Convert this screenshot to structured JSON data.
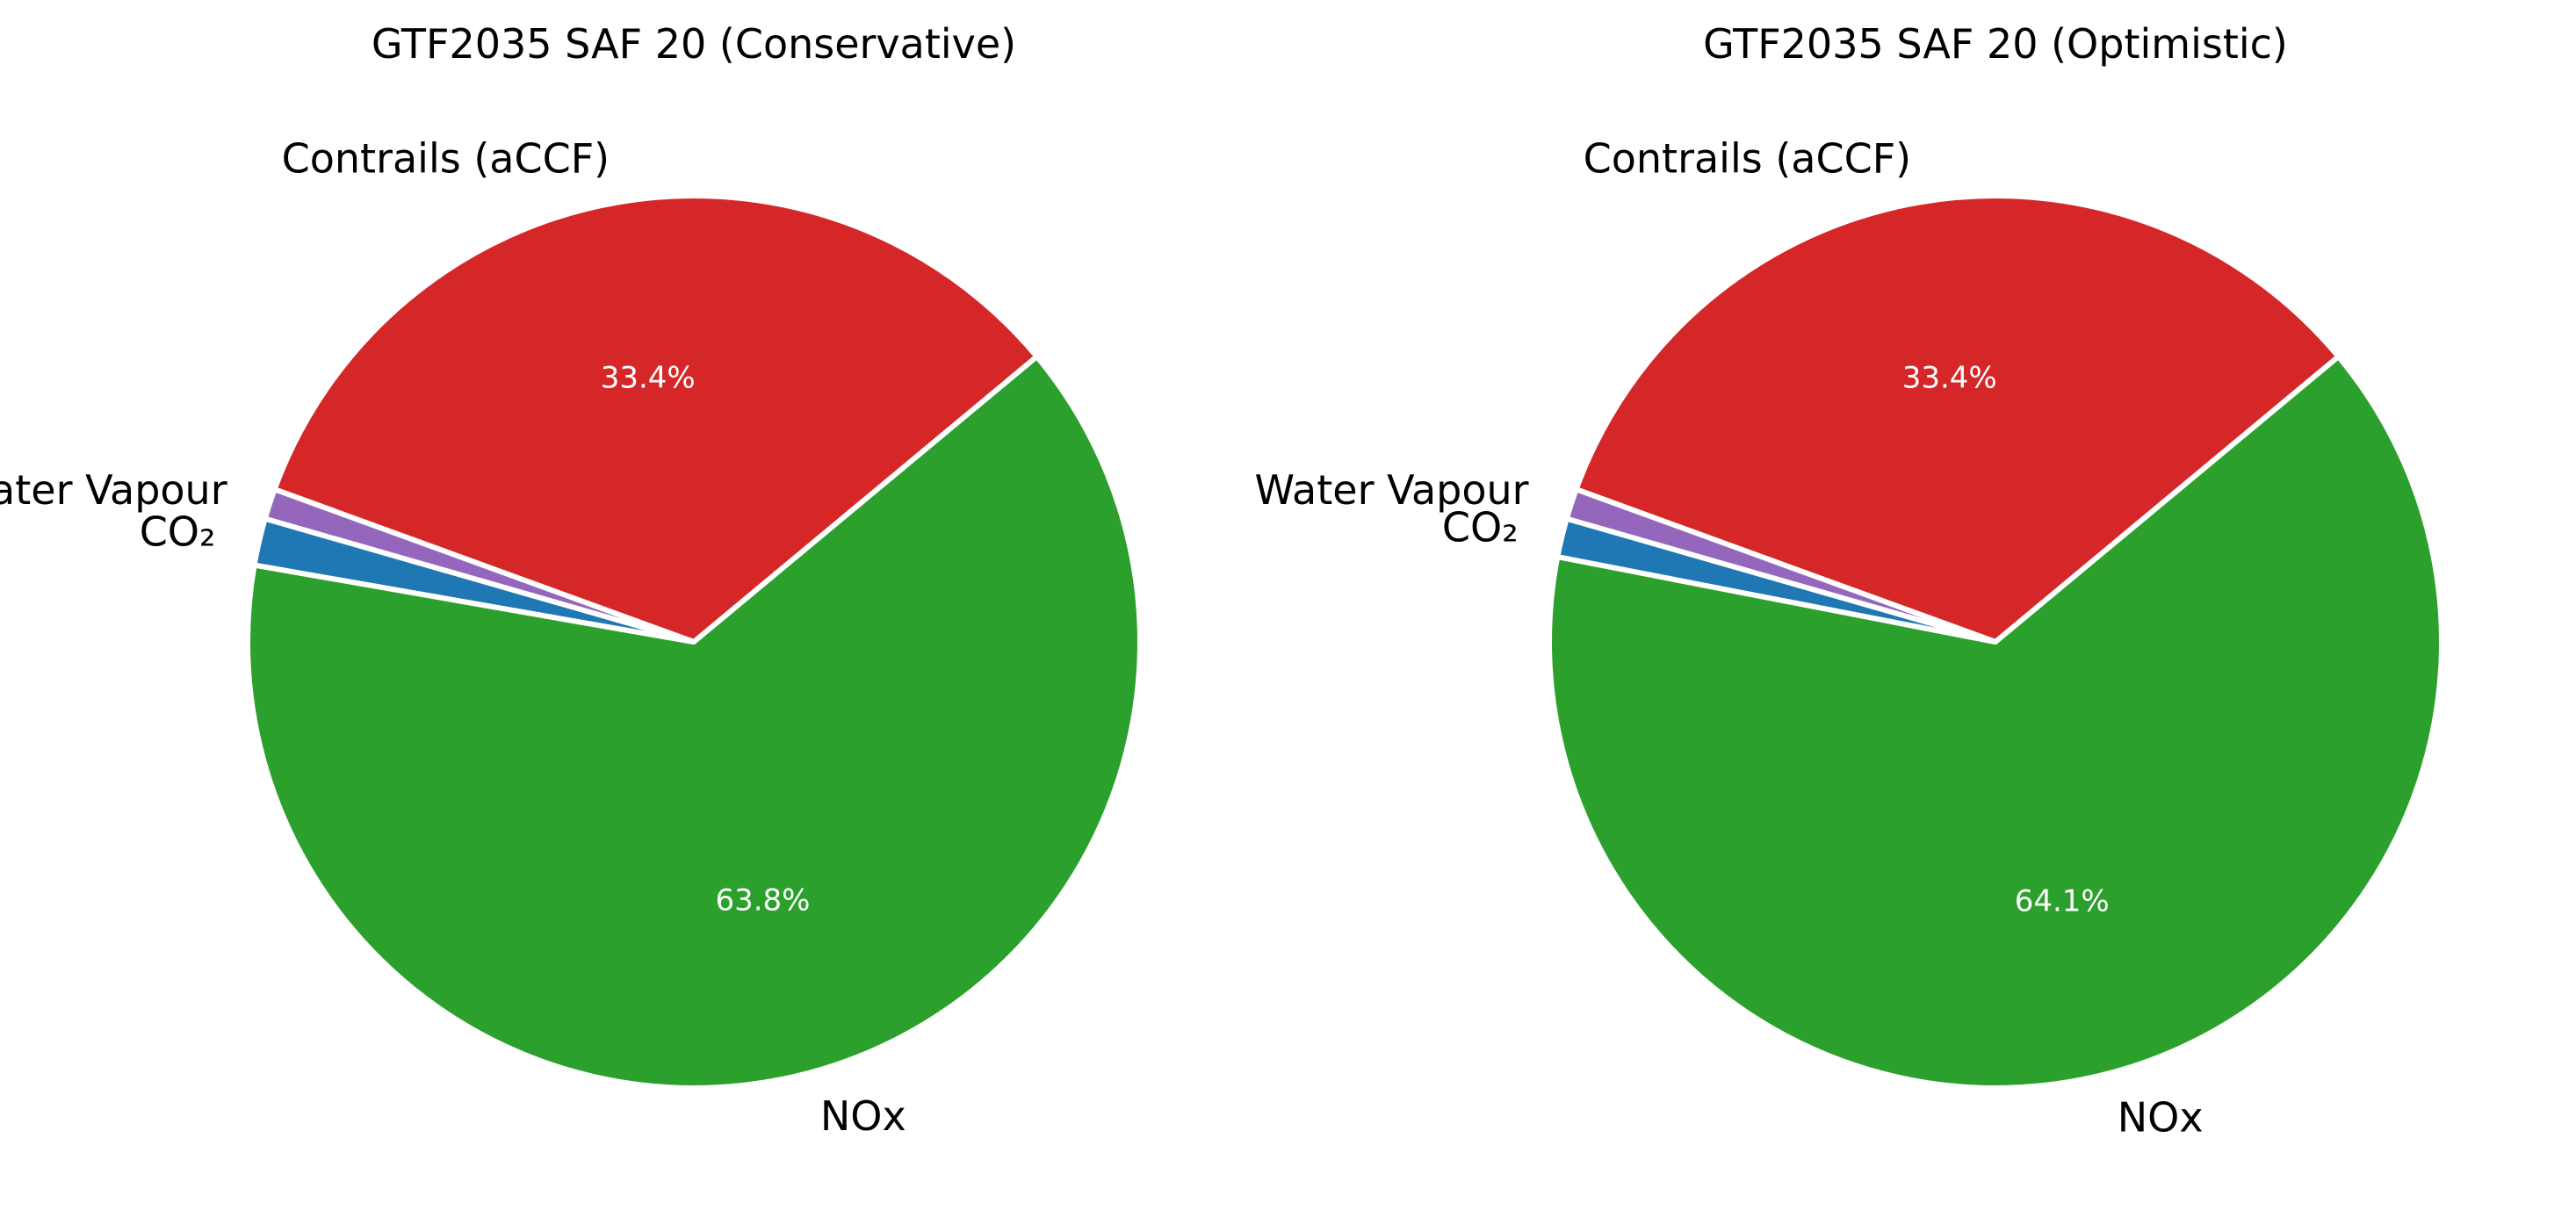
{
  "chart_data": [
    {
      "type": "pie",
      "title": "GTF2035 SAF 20 (Conservative)",
      "start_angle_deg": 160,
      "counterclock": false,
      "slices": [
        {
          "label": "Contrails (aCCF)",
          "value": 33.4,
          "pct_label": "33.4%",
          "color": "#d62728"
        },
        {
          "label": "NOx",
          "value": 63.8,
          "pct_label": "63.8%",
          "color": "#2ca02c"
        },
        {
          "label": "CO₂",
          "value": 1.7,
          "pct_label": "",
          "color": "#1f77b4"
        },
        {
          "label": "Water Vapour",
          "value": 1.1,
          "pct_label": "",
          "color": "#9467bd"
        }
      ]
    },
    {
      "type": "pie",
      "title": "GTF2035 SAF 20 (Optimistic)",
      "start_angle_deg": 160,
      "counterclock": false,
      "slices": [
        {
          "label": "Contrails (aCCF)",
          "value": 33.4,
          "pct_label": "33.4%",
          "color": "#d62728"
        },
        {
          "label": "NOx",
          "value": 64.1,
          "pct_label": "64.1%",
          "color": "#2ca02c"
        },
        {
          "label": "CO₂",
          "value": 1.4,
          "pct_label": "",
          "color": "#1f77b4"
        },
        {
          "label": "Water Vapour",
          "value": 1.1,
          "pct_label": "",
          "color": "#9467bd"
        }
      ]
    }
  ]
}
